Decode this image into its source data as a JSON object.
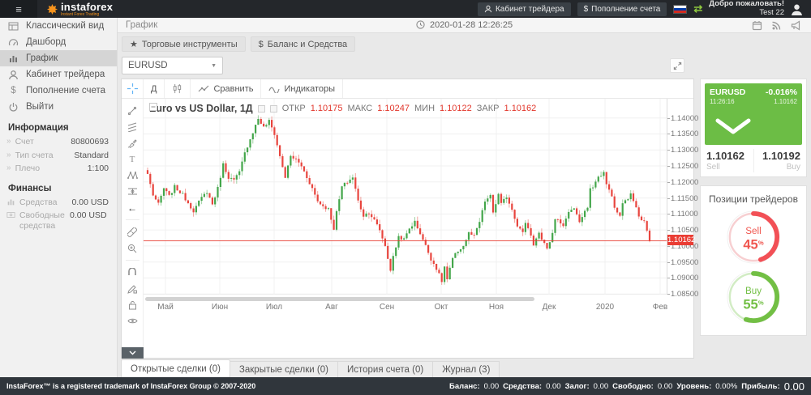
{
  "topbar": {
    "logo_text": "instaforex",
    "logo_subtitle": "Instant Forex Trading",
    "trader_cabinet": "Кабинет трейдера",
    "deposit": "Пополнение счета",
    "welcome_line1": "Добро пожаловать!",
    "welcome_line2": "Test 22"
  },
  "sidebar": {
    "items": [
      {
        "label": "Классический вид"
      },
      {
        "label": "Дашборд"
      },
      {
        "label": "График"
      },
      {
        "label": "Кабинет трейдера"
      },
      {
        "label": "Пополнение счета"
      },
      {
        "label": "Выйти"
      }
    ],
    "info_title": "Информация",
    "info_rows": [
      {
        "label": "Счет",
        "value": "80800693"
      },
      {
        "label": "Тип счета",
        "value": "Standard"
      },
      {
        "label": "Плечо",
        "value": "1:100"
      }
    ],
    "finance_title": "Финансы",
    "finance_rows": [
      {
        "label": "Средства",
        "value": "0.00 USD"
      },
      {
        "label": "Свободные средства",
        "value": "0.00 USD"
      }
    ]
  },
  "header": {
    "page_title": "График",
    "datetime": "2020-01-28 12:26:25"
  },
  "toolbar_buttons": {
    "instruments_icon": "★",
    "instruments": "Торговые инструменты",
    "balance_icon": "$",
    "balance": "Баланс и Средства"
  },
  "symbol_select": {
    "value": "EURUSD",
    "caret": "▼"
  },
  "chart": {
    "timeframe_button": "Д",
    "compare_label": "Сравнить",
    "indicators_label": "Индикаторы",
    "title": "Euro vs US Dollar, 1Д",
    "ohlc": {
      "open_label": "ОТКР",
      "open": "1.10175",
      "high_label": "МАКС",
      "high": "1.10247",
      "low_label": "МИН",
      "low": "1.10122",
      "close_label": "ЗАКР",
      "close": "1.10162"
    },
    "current_price": "1.10162",
    "y_ticks": [
      "1.14000",
      "1.13500",
      "1.13000",
      "1.12500",
      "1.12000",
      "1.11500",
      "1.11000",
      "1.10500",
      "1.10000",
      "1.09500",
      "1.09000",
      "1.08500"
    ],
    "x_ticks": [
      "Май",
      "Июн",
      "Июл",
      "Авг",
      "Сен",
      "Окт",
      "Ноя",
      "Дек",
      "2020",
      "Фев"
    ]
  },
  "quote_panel": {
    "symbol": "EURUSD",
    "time": "11:26:16",
    "change_pct": "-0.016%",
    "last": "1.10162",
    "sell_price": "1.10162",
    "sell_label": "Sell",
    "buy_price": "1.10192",
    "buy_label": "Buy"
  },
  "positions_panel": {
    "title": "Позиции трейдеров",
    "sell": {
      "label": "Sell",
      "value": 45,
      "pct_sign": "%"
    },
    "buy": {
      "label": "Buy",
      "value": 55,
      "pct_sign": "%"
    }
  },
  "tabs": [
    {
      "label": "Открытые сделки (0)"
    },
    {
      "label": "Закрытые сделки (0)"
    },
    {
      "label": "История счета (0)"
    },
    {
      "label": "Журнал (3)"
    }
  ],
  "footer": {
    "copyright": "InstaForex™ is a registered trademark of InstaForex Group © 2007-2020",
    "stats": [
      {
        "label": "Баланс:",
        "value": "0.00"
      },
      {
        "label": "Средства:",
        "value": "0.00"
      },
      {
        "label": "Залог:",
        "value": "0.00"
      },
      {
        "label": "Свободно:",
        "value": "0.00"
      },
      {
        "label": "Уровень:",
        "value": "0.00%"
      },
      {
        "label": "Прибыль:",
        "value": "0.00"
      }
    ]
  },
  "colors": {
    "accent_orange": "#f7941d",
    "quote_green": "#6cbd45",
    "sell_red": "#f0564f",
    "buy_green": "#72bf44",
    "price_line_red": "#e8392e"
  },
  "chart_data": {
    "type": "candlestick",
    "symbol": "EURUSD",
    "timeframe": "1D",
    "title": "Euro vs US Dollar, 1Д",
    "ohlc_readout": {
      "open": 1.10175,
      "high": 1.10247,
      "low": 1.10122,
      "close": 1.10162
    },
    "price_line": 1.10162,
    "last_close": 1.10162,
    "y_range": [
      1.0848,
      1.146
    ],
    "grid": true,
    "up_color": "#43a64a",
    "down_color": "#e8453e",
    "candle_count": 187,
    "close_keypoints": [
      [
        0,
        1.1225
      ],
      [
        2,
        1.116
      ],
      [
        4,
        1.113
      ],
      [
        6,
        1.118
      ],
      [
        8,
        1.1155
      ],
      [
        10,
        1.1185
      ],
      [
        13,
        1.116
      ],
      [
        15,
        1.1135
      ],
      [
        17,
        1.111
      ],
      [
        20,
        1.115
      ],
      [
        22,
        1.117
      ],
      [
        24,
        1.113
      ],
      [
        26,
        1.118
      ],
      [
        28,
        1.1255
      ],
      [
        30,
        1.1215
      ],
      [
        32,
        1.1205
      ],
      [
        34,
        1.123
      ],
      [
        36,
        1.129
      ],
      [
        38,
        1.1335
      ],
      [
        41,
        1.1398
      ],
      [
        43,
        1.137
      ],
      [
        45,
        1.139
      ],
      [
        47,
        1.135
      ],
      [
        49,
        1.128
      ],
      [
        51,
        1.1215
      ],
      [
        53,
        1.128
      ],
      [
        55,
        1.127
      ],
      [
        57,
        1.125
      ],
      [
        59,
        1.1215
      ],
      [
        61,
        1.118
      ],
      [
        63,
        1.114
      ],
      [
        65,
        1.1125
      ],
      [
        67,
        1.1115
      ],
      [
        69,
        1.1055
      ],
      [
        70,
        1.1105
      ],
      [
        72,
        1.1185
      ],
      [
        74,
        1.12
      ],
      [
        76,
        1.1215
      ],
      [
        78,
        1.114
      ],
      [
        80,
        1.1095
      ],
      [
        82,
        1.1105
      ],
      [
        84,
        1.108
      ],
      [
        86,
        1.105
      ],
      [
        88,
        1.1
      ],
      [
        90,
        1.0925
      ],
      [
        91,
        1.0965
      ],
      [
        93,
        1.103
      ],
      [
        95,
        1.102
      ],
      [
        97,
        1.1055
      ],
      [
        99,
        1.1075
      ],
      [
        101,
        1.104
      ],
      [
        103,
        1.1
      ],
      [
        105,
        1.096
      ],
      [
        107,
        1.093
      ],
      [
        109,
        1.089
      ],
      [
        110,
        1.0935
      ],
      [
        111,
        1.0895
      ],
      [
        113,
        1.096
      ],
      [
        115,
        1.0985
      ],
      [
        117,
        1.1
      ],
      [
        119,
        1.104
      ],
      [
        121,
        1.103
      ],
      [
        123,
        1.1075
      ],
      [
        125,
        1.114
      ],
      [
        127,
        1.1155
      ],
      [
        128,
        1.1105
      ],
      [
        130,
        1.116
      ],
      [
        131,
        1.113
      ],
      [
        133,
        1.1155
      ],
      [
        135,
        1.1115
      ],
      [
        137,
        1.1065
      ],
      [
        139,
        1.104
      ],
      [
        140,
        1.1075
      ],
      [
        142,
        1.1035
      ],
      [
        143,
        1.1005
      ],
      [
        145,
        1.104
      ],
      [
        146,
        1.1015
      ],
      [
        148,
        1.0995
      ],
      [
        149,
        1.101
      ],
      [
        151,
        1.108
      ],
      [
        152,
        1.1085
      ],
      [
        154,
        1.106
      ],
      [
        155,
        1.109
      ],
      [
        157,
        1.1115
      ],
      [
        158,
        1.112
      ],
      [
        160,
        1.1075
      ],
      [
        161,
        1.109
      ],
      [
        163,
        1.112
      ],
      [
        164,
        1.1175
      ],
      [
        166,
        1.12
      ],
      [
        167,
        1.1215
      ],
      [
        169,
        1.123
      ],
      [
        170,
        1.119
      ],
      [
        172,
        1.116
      ],
      [
        173,
        1.1115
      ],
      [
        175,
        1.1095
      ],
      [
        176,
        1.113
      ],
      [
        178,
        1.115
      ],
      [
        179,
        1.116
      ],
      [
        181,
        1.1125
      ],
      [
        182,
        1.1095
      ],
      [
        184,
        1.1075
      ],
      [
        185,
        1.1045
      ],
      [
        186,
        1.10162
      ]
    ]
  }
}
